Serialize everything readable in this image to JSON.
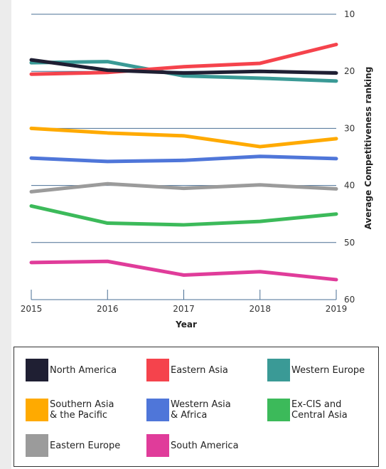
{
  "chart_data": {
    "type": "line",
    "title": "",
    "xlabel": "Year",
    "ylabel": "Average Competitiveness ranking",
    "x": [
      "2015",
      "2016",
      "2017",
      "2018",
      "2019"
    ],
    "y_ticks": [
      "10",
      "20",
      "30",
      "40",
      "50",
      "60"
    ],
    "ylim": [
      60,
      10
    ],
    "y_axis_position": "right",
    "y_inverted": true,
    "grid": "horizontal",
    "legend_position": "bottom",
    "series": [
      {
        "name": "North America",
        "color": "#1f1f33",
        "values": [
          18,
          19.8,
          20.3,
          20,
          20.3
        ]
      },
      {
        "name": "Eastern Asia",
        "color": "#f5434c",
        "values": [
          20.5,
          20.2,
          19.2,
          18.6,
          15.3
        ]
      },
      {
        "name": "Western Europe",
        "color": "#3a9a96",
        "values": [
          18.5,
          18.3,
          20.8,
          21.2,
          21.7
        ]
      },
      {
        "name": "Southern Asia\n& the Pacific",
        "color": "#ffaa00",
        "values": [
          30,
          30.8,
          31.3,
          33.2,
          31.8
        ]
      },
      {
        "name": "Western Asia\n& Africa",
        "color": "#4f76d9",
        "values": [
          35.2,
          35.8,
          35.6,
          34.9,
          35.3
        ]
      },
      {
        "name": "Ex-CIS and\nCentral Asia",
        "color": "#3cba5a",
        "values": [
          43.6,
          46.6,
          46.9,
          46.3,
          45
        ]
      },
      {
        "name": "Eastern Europe",
        "color": "#9b9b9b",
        "values": [
          41.1,
          39.7,
          40.5,
          39.9,
          40.6
        ]
      },
      {
        "name": "South America",
        "color": "#e03c9a",
        "values": [
          53.5,
          53.3,
          55.7,
          55.1,
          56.5
        ]
      }
    ]
  }
}
